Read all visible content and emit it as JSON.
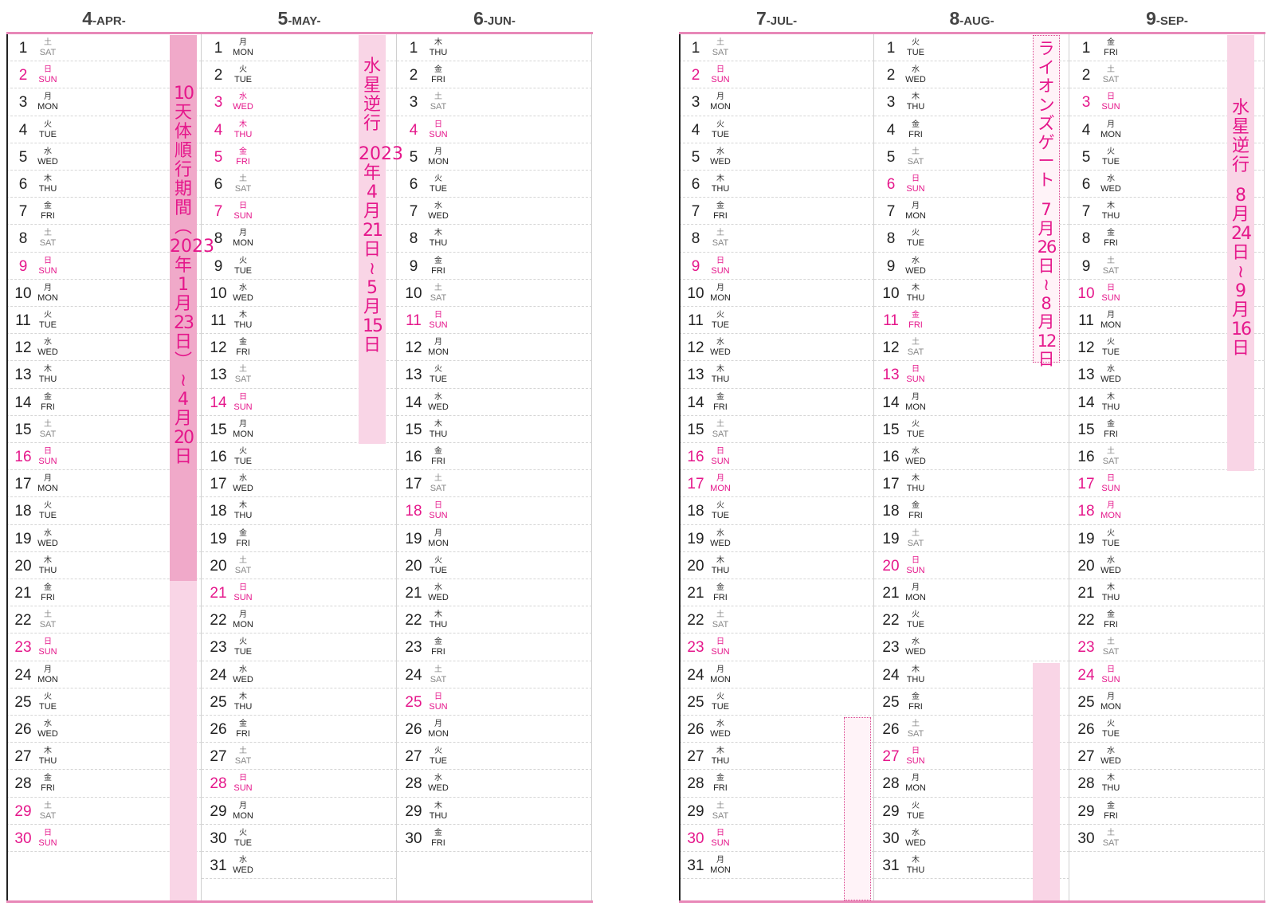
{
  "left_page": {
    "months": [
      {
        "num": "4",
        "label": "-APR-",
        "start_weekday": 6,
        "days": 30,
        "holidays": [
          29
        ]
      },
      {
        "num": "5",
        "label": "-MAY-",
        "start_weekday": 1,
        "days": 31,
        "holidays": [
          3,
          4,
          5
        ]
      },
      {
        "num": "6",
        "label": "-JUN-",
        "start_weekday": 4,
        "days": 30,
        "holidays": []
      }
    ]
  },
  "right_page": {
    "months": [
      {
        "num": "7",
        "label": "-JUL-",
        "start_weekday": 6,
        "days": 31,
        "holidays": [
          17
        ]
      },
      {
        "num": "8",
        "label": "-AUG-",
        "start_weekday": 2,
        "days": 31,
        "holidays": [
          11
        ]
      },
      {
        "num": "9",
        "label": "-SEP-",
        "start_weekday": 5,
        "days": 30,
        "holidays": [
          18,
          23
        ]
      }
    ]
  },
  "weekdays": [
    {
      "ja": "日",
      "en": "SUN"
    },
    {
      "ja": "月",
      "en": "MON"
    },
    {
      "ja": "火",
      "en": "TUE"
    },
    {
      "ja": "水",
      "en": "WED"
    },
    {
      "ja": "木",
      "en": "THU"
    },
    {
      "ja": "金",
      "en": "FRI"
    },
    {
      "ja": "土",
      "en": "SAT"
    }
  ],
  "annotations": {
    "saturn_period": "10天体順行期間（2023年1月23日）～4月20日",
    "mercury_retro_1": "水星逆行　2023年4月21日～5月15日",
    "lions_gate": "ライオンズゲート　7月26日～8月12日",
    "mercury_retro_2": "水星逆行　8月24日～9月16日"
  },
  "colors": {
    "accent": "#e5178b",
    "band_light": "#f9d5e6",
    "band_strong": "#f0a9c9",
    "rule": "#e888b8"
  }
}
